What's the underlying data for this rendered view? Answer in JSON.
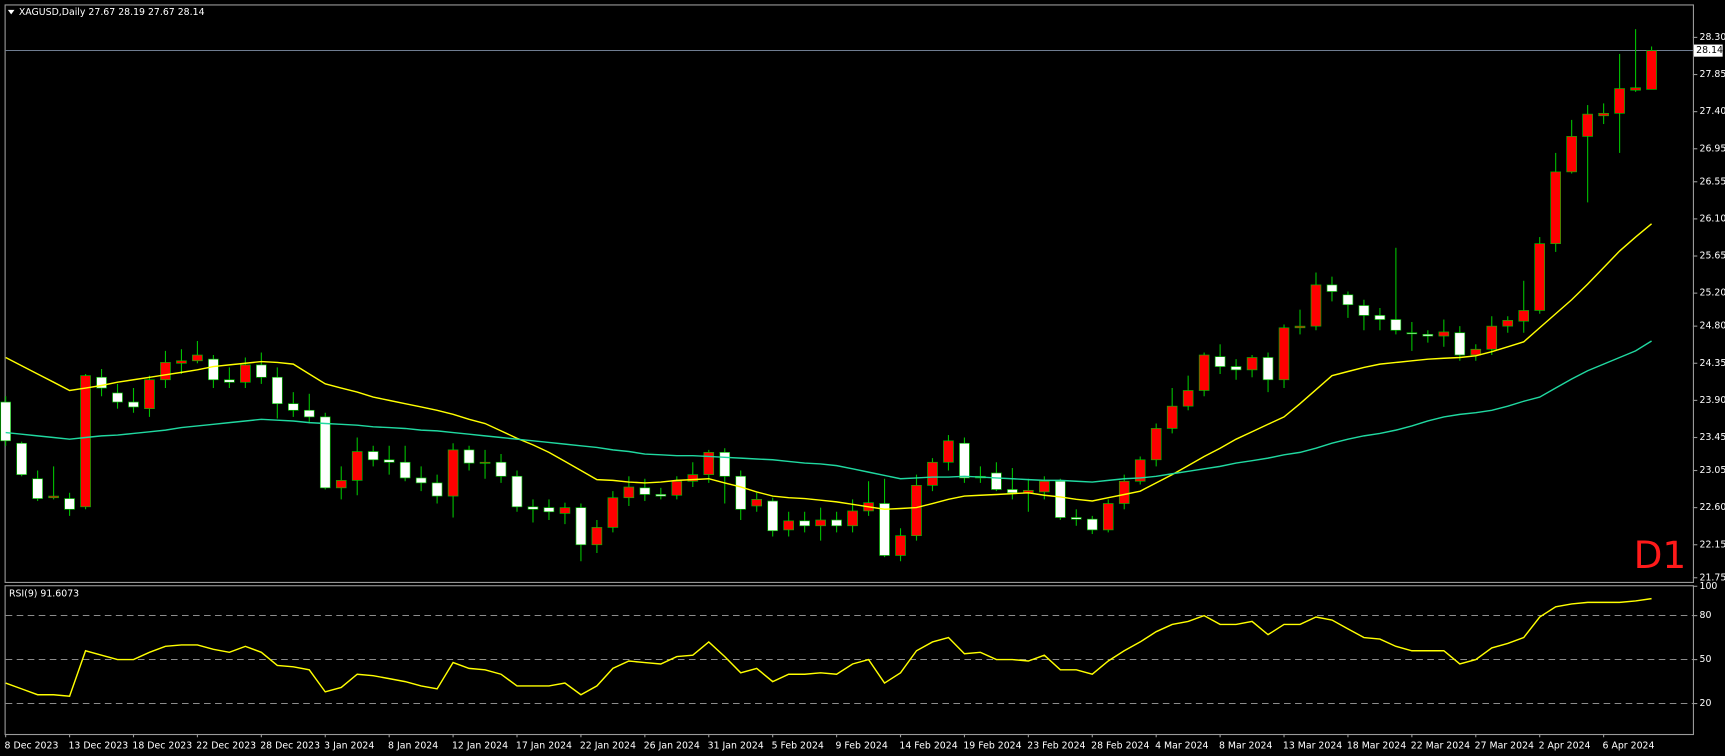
{
  "chart_data": {
    "type": "candlestick",
    "title": "XAGUSD,Daily  27.67 28.19 27.67 28.14",
    "timeframe_label": "D1",
    "categories": [
      "8 Dec 2023",
      null,
      null,
      null,
      "13 Dec 2023",
      null,
      null,
      null,
      "18 Dec 2023",
      null,
      null,
      null,
      "22 Dec 2023",
      null,
      null,
      null,
      "28 Dec 2023",
      null,
      null,
      null,
      "3 Jan 2024",
      null,
      null,
      null,
      "8 Jan 2024",
      null,
      null,
      null,
      "12 Jan 2024",
      null,
      null,
      null,
      "17 Jan 2024",
      null,
      null,
      null,
      "22 Jan 2024",
      null,
      null,
      null,
      "26 Jan 2024",
      null,
      null,
      null,
      "31 Jan 2024",
      null,
      null,
      null,
      "5 Feb 2024",
      null,
      null,
      null,
      "9 Feb 2024",
      null,
      null,
      null,
      "14 Feb 2024",
      null,
      null,
      null,
      "19 Feb 2024",
      null,
      null,
      null,
      "23 Feb 2024",
      null,
      null,
      null,
      "28 Feb 2024",
      null,
      null,
      null,
      "4 Mar 2024",
      null,
      null,
      null,
      "8 Mar 2024",
      null,
      null,
      null,
      "13 Mar 2024",
      null,
      null,
      null,
      "18 Mar 2024",
      null,
      null,
      null,
      "22 Mar 2024",
      null,
      null,
      null,
      "27 Mar 2024",
      null,
      null,
      null,
      "2 Apr 2024",
      null,
      null,
      null,
      "6 Apr 2024",
      null,
      null,
      null
    ],
    "open": [
      23.88,
      23.38,
      22.95,
      22.72,
      22.71,
      22.61,
      24.18,
      23.99,
      23.88,
      23.8,
      24.15,
      24.35,
      24.38,
      24.4,
      24.15,
      24.12,
      24.33,
      24.18,
      23.86,
      23.78,
      23.7,
      22.84,
      22.93,
      23.28,
      23.18,
      23.15,
      22.96,
      22.9,
      22.74,
      23.3,
      23.14,
      23.15,
      22.98,
      22.61,
      22.6,
      22.53,
      22.6,
      22.15,
      22.36,
      22.72,
      22.84,
      22.76,
      22.75,
      22.92,
      23.0,
      23.27,
      22.98,
      22.62,
      22.68,
      22.33,
      22.44,
      22.38,
      22.45,
      22.38,
      22.56,
      22.65,
      22.02,
      22.26,
      22.87,
      23.15,
      23.38,
      22.96,
      23.02,
      22.82,
      22.78,
      22.79,
      22.92,
      22.48,
      22.46,
      22.33,
      22.65,
      22.92,
      23.18,
      23.56,
      23.83,
      24.02,
      24.43,
      24.31,
      24.27,
      24.42,
      24.15,
      24.78,
      24.8,
      25.3,
      25.18,
      25.05,
      24.93,
      24.88,
      24.72,
      24.7,
      24.68,
      24.72,
      24.45,
      24.52,
      24.8,
      24.86,
      24.99,
      25.8,
      26.67,
      27.1,
      27.35,
      27.38,
      27.66,
      27.67
    ],
    "high": [
      23.95,
      23.4,
      23.05,
      23.1,
      22.78,
      24.22,
      24.28,
      24.1,
      24.05,
      24.2,
      24.5,
      24.52,
      24.62,
      24.45,
      24.3,
      24.42,
      24.48,
      24.3,
      24.0,
      23.98,
      23.75,
      23.1,
      23.45,
      23.35,
      23.35,
      23.35,
      23.1,
      23.0,
      23.38,
      23.35,
      23.3,
      23.25,
      23.05,
      22.7,
      22.7,
      22.66,
      22.65,
      22.45,
      22.8,
      22.98,
      22.95,
      22.84,
      22.98,
      23.15,
      23.3,
      23.32,
      23.05,
      22.78,
      22.72,
      22.55,
      22.55,
      22.6,
      22.55,
      22.7,
      22.92,
      22.95,
      22.35,
      23.0,
      23.2,
      23.48,
      23.45,
      23.1,
      23.15,
      23.08,
      22.95,
      22.98,
      22.95,
      22.58,
      22.5,
      22.7,
      23.0,
      23.22,
      23.62,
      24.05,
      24.2,
      24.48,
      24.58,
      24.4,
      24.45,
      24.48,
      24.82,
      25.0,
      25.45,
      25.4,
      25.22,
      25.12,
      25.02,
      25.75,
      24.85,
      24.75,
      24.88,
      24.8,
      24.58,
      24.92,
      24.92,
      25.35,
      25.88,
      26.9,
      27.3,
      27.48,
      27.5,
      28.1,
      28.4,
      28.19
    ],
    "low": [
      23.35,
      22.98,
      22.68,
      22.7,
      22.5,
      22.58,
      23.95,
      23.8,
      23.75,
      23.7,
      24.05,
      24.22,
      24.35,
      24.05,
      24.05,
      24.05,
      24.1,
      23.68,
      23.7,
      23.62,
      22.82,
      22.7,
      22.75,
      23.1,
      23.0,
      22.92,
      22.8,
      22.65,
      22.48,
      23.05,
      22.95,
      22.9,
      22.55,
      22.42,
      22.45,
      22.4,
      21.95,
      22.05,
      22.3,
      22.62,
      22.68,
      22.7,
      22.7,
      22.85,
      22.9,
      22.65,
      22.45,
      22.55,
      22.25,
      22.25,
      22.3,
      22.2,
      22.3,
      22.3,
      22.5,
      22.0,
      21.95,
      22.2,
      22.8,
      23.05,
      22.9,
      22.9,
      22.8,
      22.7,
      22.55,
      22.7,
      22.45,
      22.38,
      22.28,
      22.3,
      22.58,
      22.88,
      23.1,
      23.5,
      23.78,
      23.95,
      24.22,
      24.15,
      24.18,
      24.0,
      24.05,
      24.7,
      24.75,
      25.1,
      24.9,
      24.75,
      24.75,
      24.7,
      24.5,
      24.6,
      24.55,
      24.38,
      24.38,
      24.45,
      24.72,
      24.72,
      24.95,
      25.7,
      26.65,
      26.3,
      27.25,
      26.9,
      27.64,
      27.67
    ],
    "close": [
      23.41,
      23.0,
      22.71,
      22.74,
      22.58,
      24.2,
      24.05,
      23.88,
      23.82,
      24.15,
      24.36,
      24.38,
      24.45,
      24.15,
      24.12,
      24.33,
      24.18,
      23.86,
      23.78,
      23.7,
      22.84,
      22.93,
      23.28,
      23.18,
      23.15,
      22.96,
      22.9,
      22.74,
      23.3,
      23.14,
      23.15,
      22.98,
      22.61,
      22.58,
      22.55,
      22.6,
      22.15,
      22.36,
      22.72,
      22.85,
      22.76,
      22.74,
      22.92,
      23.0,
      23.27,
      22.98,
      22.58,
      22.7,
      22.32,
      22.44,
      22.38,
      22.45,
      22.38,
      22.56,
      22.66,
      22.02,
      22.26,
      22.87,
      23.15,
      23.41,
      22.96,
      22.98,
      22.82,
      22.78,
      22.81,
      22.92,
      22.48,
      22.46,
      22.33,
      22.65,
      22.92,
      23.18,
      23.56,
      23.83,
      24.02,
      24.45,
      24.31,
      24.27,
      24.42,
      24.15,
      24.78,
      24.8,
      25.3,
      25.22,
      25.06,
      24.93,
      24.88,
      24.75,
      24.71,
      24.68,
      24.73,
      24.45,
      24.52,
      24.8,
      24.87,
      24.99,
      25.8,
      26.67,
      27.1,
      27.37,
      27.38,
      27.68,
      27.69,
      28.14
    ],
    "up_color": "#ff0000",
    "down_color": "#ffffff",
    "wick_color": "#00c000",
    "moving_averages": [
      {
        "color": "#ffff00",
        "values": [
          24.42,
          24.32,
          24.22,
          24.12,
          24.02,
          24.05,
          24.08,
          24.12,
          24.15,
          24.18,
          24.21,
          24.24,
          24.27,
          24.31,
          24.33,
          24.35,
          24.37,
          24.36,
          24.34,
          24.22,
          24.1,
          24.05,
          24.0,
          23.94,
          23.9,
          23.86,
          23.82,
          23.78,
          23.73,
          23.67,
          23.62,
          23.53,
          23.44,
          23.36,
          23.27,
          23.16,
          23.05,
          22.94,
          22.93,
          22.91,
          22.9,
          22.91,
          22.93,
          22.94,
          22.95,
          22.9,
          22.85,
          22.79,
          22.74,
          22.72,
          22.71,
          22.69,
          22.67,
          22.64,
          22.61,
          22.58,
          22.59,
          22.6,
          22.65,
          22.7,
          22.74,
          22.75,
          22.76,
          22.77,
          22.78,
          22.75,
          22.73,
          22.7,
          22.68,
          22.72,
          22.76,
          22.8,
          22.9,
          23.0,
          23.11,
          23.22,
          23.32,
          23.43,
          23.52,
          23.61,
          23.7,
          23.86,
          24.03,
          24.2,
          24.25,
          24.3,
          24.34,
          24.36,
          24.38,
          24.4,
          24.41,
          24.42,
          24.44,
          24.49,
          24.55,
          24.61,
          24.78,
          24.95,
          25.12,
          25.31,
          25.51,
          25.71,
          25.88,
          26.04
        ]
      },
      {
        "color": "#20d8a0",
        "values": [
          23.51,
          23.49,
          23.47,
          23.45,
          23.43,
          23.45,
          23.47,
          23.48,
          23.5,
          23.52,
          23.54,
          23.57,
          23.59,
          23.61,
          23.63,
          23.65,
          23.67,
          23.66,
          23.65,
          23.63,
          23.62,
          23.61,
          23.6,
          23.58,
          23.57,
          23.56,
          23.54,
          23.53,
          23.51,
          23.49,
          23.47,
          23.45,
          23.43,
          23.41,
          23.39,
          23.37,
          23.35,
          23.33,
          23.3,
          23.28,
          23.25,
          23.24,
          23.23,
          23.23,
          23.22,
          23.21,
          23.2,
          23.19,
          23.18,
          23.16,
          23.14,
          23.13,
          23.11,
          23.07,
          23.03,
          22.99,
          22.95,
          22.96,
          22.97,
          22.97,
          22.98,
          22.97,
          22.96,
          22.95,
          22.94,
          22.93,
          22.93,
          22.92,
          22.91,
          22.93,
          22.95,
          22.96,
          22.98,
          23.01,
          23.04,
          23.07,
          23.1,
          23.14,
          23.17,
          23.2,
          23.24,
          23.27,
          23.32,
          23.38,
          23.43,
          23.47,
          23.5,
          23.54,
          23.59,
          23.65,
          23.7,
          23.73,
          23.75,
          23.78,
          23.83,
          23.89,
          23.94,
          24.05,
          24.16,
          24.26,
          24.34,
          24.42,
          24.5,
          24.62
        ]
      }
    ],
    "current_price": {
      "value": 28.14,
      "label": "28.14"
    },
    "ylim": [
      21.7,
      28.7
    ],
    "yticks": [
      {
        "value": 28.3,
        "label": "28.30"
      },
      27.85,
      {
        "value": 27.4,
        "label": "27.40"
      },
      26.95,
      26.55,
      {
        "value": 26.1,
        "label": "26.10"
      },
      25.65,
      {
        "value": 25.2,
        "label": "25.20"
      },
      {
        "value": 24.8,
        "label": "24.80"
      },
      24.35,
      {
        "value": 23.9,
        "label": "23.90"
      },
      23.45,
      23.05,
      {
        "value": 22.6,
        "label": "22.60"
      },
      22.15,
      21.75
    ],
    "rsi": {
      "title": "RSI(9) 91.6073",
      "color": "#ffff00",
      "ylim": [
        0,
        100
      ],
      "yticks": [
        100,
        80,
        50,
        20
      ],
      "levels": [
        80,
        50,
        20
      ],
      "values": [
        34,
        30,
        26,
        26,
        25,
        56,
        53,
        50,
        50,
        55,
        59,
        60,
        60,
        57,
        55,
        59,
        55,
        46,
        45,
        43,
        28,
        31,
        40,
        39,
        37,
        35,
        32,
        30,
        48,
        44,
        43,
        40,
        32,
        32,
        32,
        34,
        26,
        32,
        44,
        49,
        48,
        47,
        52,
        53,
        62,
        52,
        41,
        44,
        35,
        40,
        40,
        41,
        40,
        47,
        50,
        34,
        41,
        56,
        62,
        65,
        54,
        55,
        50,
        50,
        49,
        53,
        43,
        43,
        40,
        49,
        56,
        62,
        69,
        74,
        76,
        80,
        74,
        74,
        76,
        67,
        74,
        74,
        79,
        77,
        71,
        65,
        64,
        59,
        56,
        56,
        56,
        47,
        50,
        58,
        61,
        65,
        79,
        86,
        88,
        89,
        89,
        89,
        90,
        91.6073
      ]
    }
  }
}
